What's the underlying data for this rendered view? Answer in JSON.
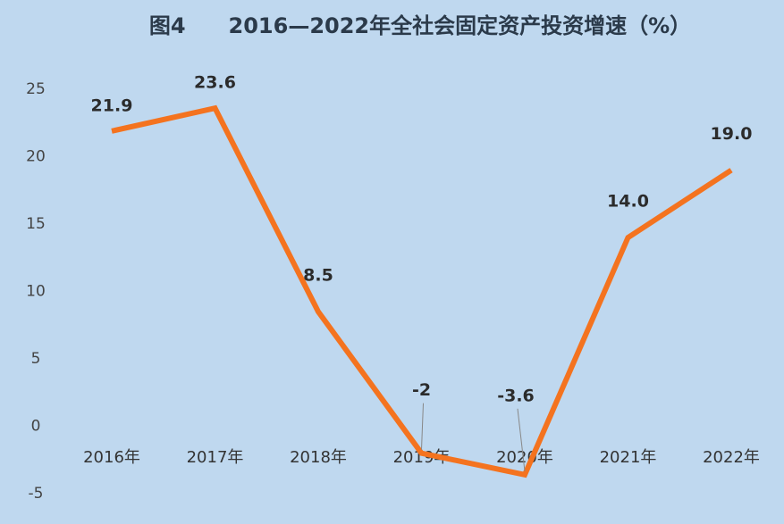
{
  "chart_data": {
    "type": "line",
    "title": "图4　　2016—2022年全社会固定资产投资增速（%）",
    "categories": [
      "2016年",
      "2017年",
      "2018年",
      "2019年",
      "2020年",
      "2021年",
      "2022年"
    ],
    "values": [
      21.9,
      23.6,
      8.5,
      -2,
      -3.6,
      14.0,
      19.0
    ],
    "value_labels": [
      "21.9",
      "23.6",
      "8.5",
      "-2",
      "-3.6",
      "14.0",
      "19.0"
    ],
    "color": "#f4731f",
    "ylim": [
      -5,
      25
    ],
    "yticks": [
      -5,
      0,
      5,
      10,
      15,
      20,
      25
    ],
    "grid": false
  }
}
